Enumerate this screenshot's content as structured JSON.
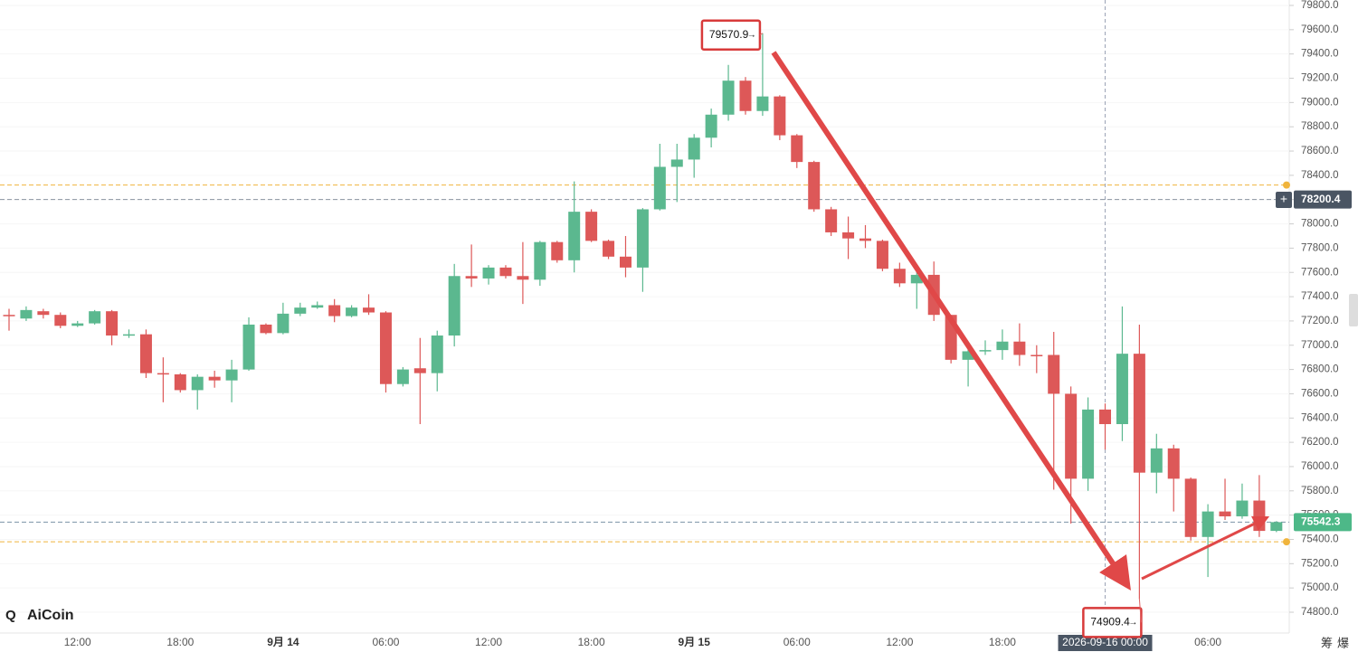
{
  "chart_data": {
    "type": "candlestick",
    "categories": [
      null,
      null,
      null,
      null,
      "12:00",
      null,
      null,
      null,
      null,
      null,
      "18:00",
      null,
      null,
      null,
      null,
      null,
      "9月 14",
      null,
      null,
      null,
      null,
      null,
      "06:00",
      null,
      null,
      null,
      null,
      null,
      "12:00",
      null,
      null,
      null,
      null,
      null,
      "18:00",
      null,
      null,
      null,
      null,
      null,
      "9月 15",
      null,
      null,
      null,
      null,
      null,
      "06:00",
      null,
      null,
      null,
      null,
      null,
      "12:00",
      null,
      null,
      null,
      null,
      null,
      "18:00",
      null,
      null,
      null,
      null,
      null,
      "2026-09-16 00:00",
      null,
      null,
      null,
      null,
      null,
      "06:00",
      null,
      null,
      null,
      null
    ],
    "open": [
      77250,
      77220,
      77280,
      77250,
      77160,
      77180,
      77280,
      77080,
      77090,
      76770,
      76760,
      76630,
      76740,
      76710,
      76800,
      77170,
      77100,
      77260,
      77310,
      77330,
      77240,
      77310,
      77270,
      76680,
      76810,
      76770,
      77080,
      77570,
      77550,
      77640,
      77570,
      77540,
      77850,
      77700,
      78100,
      77860,
      77730,
      77640,
      78120,
      78470,
      78530,
      78710,
      78900,
      79180,
      78930,
      79050,
      78730,
      78510,
      78120,
      77930,
      77880,
      77860,
      77630,
      77510,
      77580,
      77250,
      76880,
      76950,
      76960,
      77030,
      76920,
      76920,
      76600,
      75900,
      76470,
      76350,
      76930,
      75950,
      76150,
      75900,
      75420,
      75630,
      75590,
      75720,
      75470
    ],
    "high": [
      77300,
      77320,
      77300,
      77270,
      77200,
      77290,
      77290,
      77130,
      77130,
      76900,
      76770,
      76760,
      76790,
      76880,
      77230,
      77180,
      77350,
      77350,
      77360,
      77380,
      77330,
      77420,
      77280,
      76820,
      77060,
      77120,
      77670,
      77830,
      77660,
      77660,
      77850,
      77860,
      77860,
      78350,
      78120,
      77870,
      77900,
      78130,
      78660,
      78660,
      78740,
      78950,
      79310,
      79210,
      79570.9,
      79060,
      78740,
      78520,
      78140,
      78060,
      77990,
      77870,
      77680,
      77620,
      77690,
      77250,
      76970,
      77040,
      77130,
      77180,
      77000,
      77110,
      76660,
      76570,
      76520,
      77320,
      77170,
      76270,
      76180,
      75910,
      75690,
      75900,
      75860,
      75930,
      75550
    ],
    "low": [
      77120,
      77200,
      77220,
      77140,
      77150,
      77170,
      77000,
      77060,
      76730,
      76530,
      76610,
      76470,
      76650,
      76530,
      76790,
      77090,
      77090,
      77240,
      77300,
      77190,
      77230,
      77250,
      76610,
      76660,
      76350,
      76620,
      76990,
      77480,
      77500,
      77550,
      77340,
      77490,
      77680,
      77600,
      77850,
      77710,
      77560,
      77440,
      78110,
      78180,
      78380,
      78630,
      78850,
      78900,
      78890,
      78690,
      78460,
      78100,
      77900,
      77710,
      77800,
      77610,
      77480,
      77300,
      77200,
      76850,
      76660,
      76920,
      76880,
      76830,
      76770,
      75810,
      75530,
      75800,
      76140,
      76210,
      74909.4,
      75780,
      75630,
      75390,
      75090,
      75560,
      75570,
      75420,
      75460
    ],
    "close": [
      77240,
      77290,
      77250,
      77160,
      77180,
      77280,
      77080,
      77090,
      76770,
      76760,
      76630,
      76740,
      76710,
      76800,
      77170,
      77100,
      77260,
      77310,
      77330,
      77240,
      77310,
      77270,
      76680,
      76800,
      76770,
      77080,
      77570,
      77550,
      77640,
      77570,
      77540,
      77850,
      77700,
      78100,
      77860,
      77730,
      77640,
      78120,
      78470,
      78530,
      78710,
      78900,
      79180,
      78930,
      79050,
      78730,
      78510,
      78120,
      77930,
      77880,
      77860,
      77630,
      77510,
      77580,
      77250,
      76880,
      76950,
      76960,
      77030,
      76920,
      76910,
      76600,
      75900,
      76470,
      76350,
      76930,
      75950,
      76150,
      75900,
      75420,
      75630,
      75590,
      75720,
      75470,
      75542.3
    ],
    "up_color": "#5bb88f",
    "down_color": "#dd5858",
    "ylim": [
      74800,
      79800
    ],
    "yticks": [
      {
        "value": 74800,
        "label": "74800.0"
      },
      {
        "value": 75000,
        "label": "75000.0"
      },
      {
        "value": 75200,
        "label": "75200.0"
      },
      {
        "value": 75400,
        "label": "75400.0"
      },
      {
        "value": 75600,
        "label": "75600.0"
      },
      {
        "value": 75800,
        "label": "75800.0"
      },
      {
        "value": 76000,
        "label": "76000.0"
      },
      {
        "value": 76200,
        "label": "76200.0"
      },
      {
        "value": 76400,
        "label": "76400.0"
      },
      {
        "value": 76600,
        "label": "76600.0"
      },
      {
        "value": 76800,
        "label": "76800.0"
      },
      {
        "value": 77000,
        "label": "77000.0"
      },
      {
        "value": 77200,
        "label": "77200.0"
      },
      {
        "value": 77400,
        "label": "77400.0"
      },
      {
        "value": 77600,
        "label": "77600.0"
      },
      {
        "value": 77800,
        "label": "77800.0"
      },
      {
        "value": 78000,
        "label": "78000.0"
      },
      {
        "value": 78200,
        "label": "78200.0"
      },
      {
        "value": 78400,
        "label": "78400.0"
      },
      {
        "value": 78600,
        "label": "78600.0"
      },
      {
        "value": 78800,
        "label": "78800.0"
      },
      {
        "value": 79000,
        "label": "79000.0"
      },
      {
        "value": 79200,
        "label": "79200.0"
      },
      {
        "value": 79400,
        "label": "79400.0"
      },
      {
        "value": 79600,
        "label": "79600.0"
      },
      {
        "value": 79800,
        "label": "79800.0"
      }
    ],
    "grid": true,
    "price_lines": [
      {
        "value": 78200.4,
        "label": "78200.4",
        "color": "#4a5563"
      },
      {
        "value": 75542.3,
        "label": "75542.3",
        "color": "#4db888"
      }
    ],
    "ref_lines": [
      {
        "value": 78320,
        "color": "#f0b43c"
      },
      {
        "value": 75380,
        "color": "#f0b43c"
      }
    ],
    "annotations": [
      {
        "value": 79570.9,
        "label": "79570.9"
      },
      {
        "value": 74909.4,
        "label": "74909.4"
      }
    ],
    "watermark": "AiCoin",
    "toolbar": [
      "筹",
      "爆"
    ]
  }
}
